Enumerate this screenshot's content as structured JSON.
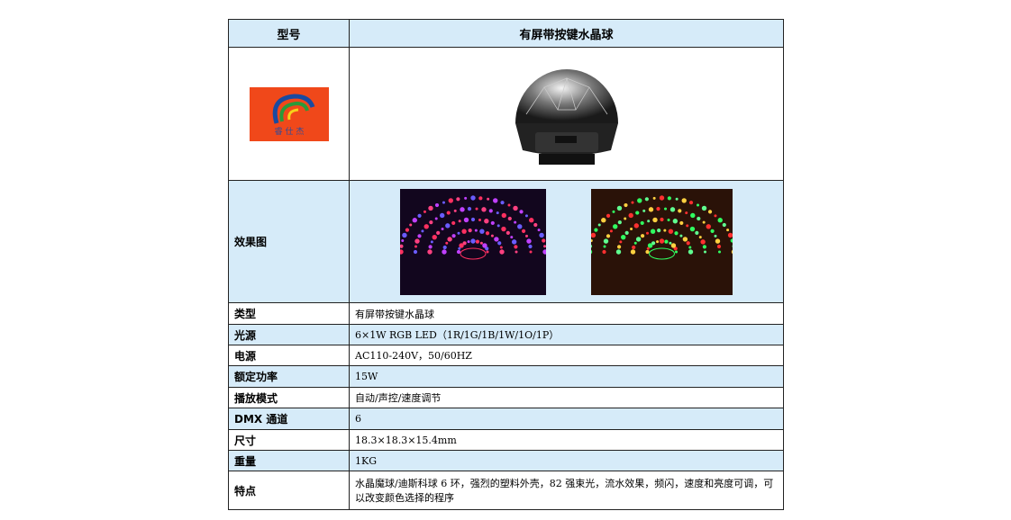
{
  "table": {
    "header": [
      "型号",
      "有屏带按键水晶球"
    ],
    "logo_text": "睿 仕 杰",
    "effect_label": "效果图",
    "rows": [
      [
        "类型",
        "有屏带按键水晶球"
      ],
      [
        "光源",
        "6×1W RGB LED（1R/1G/1B/1W/1O/1P）"
      ],
      [
        "电源",
        "AC110-240V，50/60HZ"
      ],
      [
        "额定功率",
        "15W"
      ],
      [
        "播放模式",
        "自动/声控/速度调节"
      ],
      [
        "DMX 通道",
        "6"
      ],
      [
        "尺寸",
        "18.3×18.3×15.4mm"
      ],
      [
        "重量",
        "1KG"
      ],
      [
        "特点",
        "水晶魔球/迪斯科球 6 环，强烈的塑料外壳，82 强束光，流水效果，频闪，速度和亮度可调，可以改变颜色选择的程序"
      ]
    ]
  }
}
